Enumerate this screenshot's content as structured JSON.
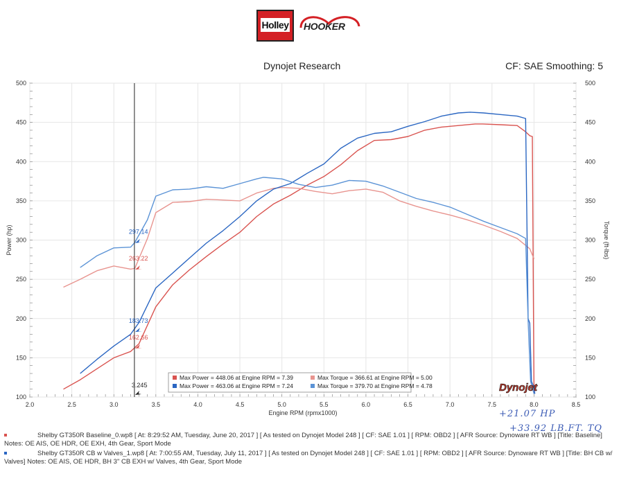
{
  "header": {
    "logo_left": "Holley",
    "logo_right": "HOOKER",
    "title_left": "Dynojet Research",
    "title_right": "CF: SAE Smoothing: 5"
  },
  "annotations": {
    "hp_gain": "+21.07 HP",
    "tq_gain": "+33.92 LB.FT. TQ"
  },
  "runs": [
    {
      "color": "#d9534f",
      "file_line": "Shelby GT350R Baseline_0.wp8 [ At: 8:29:52 AM, Tuesday, June 20, 2017 ] [ As tested on Dynojet Model 248 ] [ CF: SAE 1.01 ] [ RPM: OBD2 ] [ AFR Source: Dynoware RT WB ] [Title: Baseline]",
      "notes": "Notes: OE AIS, OE HDR, OE EXH, 4th Gear, Sport Mode"
    },
    {
      "color": "#2a66c2",
      "file_line": "Shelby GT350R CB w Valves_1.wp8 [ At: 7:00:55 AM, Tuesday, July 11, 2017 ] [ As tested on Dynojet Model 248 ] [ CF: SAE 1.01 ] [ RPM: OBD2 ] [ AFR Source: Dynoware RT WB ] [Title: BH CB w/",
      "notes": "Valves]  Notes: OE AIS, OE HDR, BH 3\" CB EXH w/ Valves, 4th Gear, Sport Mode"
    }
  ],
  "chart_data": {
    "type": "line",
    "xlabel": "Engine RPM (rpmx1000)",
    "ylabel": "Power (hp)",
    "y2label": "Torque (ft-lbs)",
    "xlim": [
      2.0,
      8.5
    ],
    "ylim": [
      100,
      500
    ],
    "y2lim": [
      100,
      500
    ],
    "x_ticks": [
      "2.0",
      "2.5",
      "3.0",
      "3.5",
      "4.0",
      "4.5",
      "5.0",
      "5.5",
      "6.0",
      "6.5",
      "7.0",
      "7.5",
      "8.0",
      "8.5"
    ],
    "y_ticks": [
      "100",
      "150",
      "200",
      "250",
      "300",
      "350",
      "400",
      "450",
      "500"
    ],
    "grid": true,
    "cursor": {
      "x": 3.245,
      "label": "3.245"
    },
    "cursor_values": [
      {
        "label": "297.14",
        "y": 297.14,
        "color": "#2a66c2"
      },
      {
        "label": "263.22",
        "y": 263.22,
        "color": "#d9534f"
      },
      {
        "label": "183.73",
        "y": 183.73,
        "color": "#2a66c2"
      },
      {
        "label": "162.66",
        "y": 162.66,
        "color": "#d9534f"
      }
    ],
    "legend": [
      {
        "text": "Max Power = 448.06 at Engine RPM = 7.39",
        "color": "#d9534f"
      },
      {
        "text": "Max Torque = 366.61 at Engine RPM = 5.00",
        "color": "#e8948f"
      },
      {
        "text": "Max Power = 463.06 at Engine RPM = 7.24",
        "color": "#2a66c2"
      },
      {
        "text": "Max Torque = 379.70 at Engine RPM = 4.78",
        "color": "#5b93d6"
      }
    ],
    "brand": "Dynojet",
    "series": [
      {
        "name": "Baseline Power",
        "color": "#d9534f",
        "x": [
          2.4,
          2.6,
          2.8,
          3.0,
          3.2,
          3.3,
          3.5,
          3.7,
          3.9,
          4.1,
          4.3,
          4.5,
          4.7,
          4.9,
          5.1,
          5.3,
          5.5,
          5.7,
          5.9,
          6.1,
          6.3,
          6.5,
          6.7,
          6.9,
          7.1,
          7.3,
          7.39,
          7.6,
          7.8,
          7.9,
          7.95,
          7.98,
          8.0
        ],
        "y": [
          110,
          122,
          136,
          150,
          158,
          168,
          215,
          243,
          262,
          279,
          295,
          310,
          330,
          346,
          357,
          370,
          381,
          396,
          414,
          427,
          428,
          432,
          440,
          444,
          446,
          448,
          448,
          447,
          446,
          438,
          433,
          432,
          104
        ]
      },
      {
        "name": "Baseline Torque",
        "color": "#e8948f",
        "x": [
          2.4,
          2.6,
          2.8,
          3.0,
          3.2,
          3.25,
          3.4,
          3.5,
          3.7,
          3.9,
          4.1,
          4.3,
          4.5,
          4.7,
          4.9,
          5.0,
          5.2,
          5.4,
          5.6,
          5.8,
          6.0,
          6.2,
          6.4,
          6.6,
          6.8,
          7.0,
          7.2,
          7.4,
          7.6,
          7.8,
          7.95,
          8.0
        ],
        "y": [
          240,
          250,
          261,
          267,
          263,
          264,
          302,
          335,
          348,
          349,
          352,
          351,
          350,
          360,
          366,
          367,
          366,
          362,
          359,
          363,
          365,
          361,
          350,
          343,
          337,
          332,
          326,
          319,
          311,
          302,
          289,
          276
        ]
      },
      {
        "name": "CB w Valves Power",
        "color": "#2a66c2",
        "x": [
          2.6,
          2.8,
          3.0,
          3.2,
          3.3,
          3.5,
          3.7,
          3.9,
          4.1,
          4.3,
          4.5,
          4.7,
          4.9,
          5.1,
          5.3,
          5.5,
          5.7,
          5.9,
          6.1,
          6.3,
          6.5,
          6.7,
          6.9,
          7.1,
          7.24,
          7.4,
          7.6,
          7.8,
          7.9,
          7.93,
          7.95,
          7.97,
          8.0,
          8.01
        ],
        "y": [
          130,
          148,
          165,
          180,
          195,
          239,
          258,
          277,
          296,
          312,
          330,
          350,
          365,
          372,
          385,
          397,
          417,
          430,
          436,
          438,
          445,
          451,
          458,
          462,
          463,
          462,
          460,
          458,
          455,
          200,
          194,
          120,
          112,
          104
        ]
      },
      {
        "name": "CB w Valves Torque",
        "color": "#5b93d6",
        "x": [
          2.6,
          2.8,
          3.0,
          3.2,
          3.25,
          3.4,
          3.5,
          3.7,
          3.9,
          4.1,
          4.3,
          4.5,
          4.7,
          4.78,
          5.0,
          5.2,
          5.4,
          5.6,
          5.8,
          6.0,
          6.2,
          6.4,
          6.6,
          6.8,
          7.0,
          7.2,
          7.4,
          7.6,
          7.8,
          7.9,
          7.93,
          7.96,
          8.0
        ],
        "y": [
          265,
          280,
          290,
          291,
          297,
          326,
          356,
          364,
          365,
          368,
          366,
          372,
          378,
          380,
          378,
          371,
          367,
          370,
          376,
          375,
          369,
          361,
          353,
          348,
          342,
          333,
          324,
          316,
          308,
          302,
          197,
          120,
          104
        ]
      }
    ]
  }
}
